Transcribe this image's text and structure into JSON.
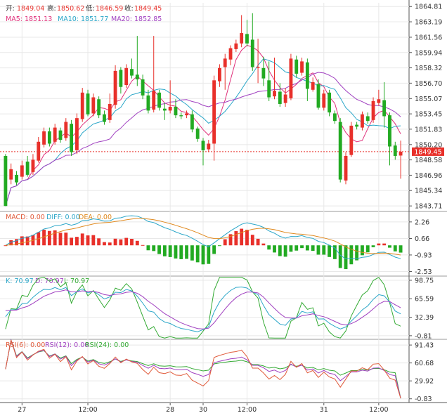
{
  "header": {
    "open_label": "开:",
    "open_value": "1849.04",
    "high_label": "高:",
    "high_value": "1850.62",
    "low_label": "低:",
    "low_value": "1846.59",
    "close_label": "收:",
    "close_value": "1849.45"
  },
  "ma_legend": [
    {
      "text": "MA5: 1851.13",
      "color": "#e0307a"
    },
    {
      "text": "MA10: 1851.77",
      "color": "#2aa6c8"
    },
    {
      "text": "MA20: 1852.85",
      "color": "#a040c0"
    }
  ],
  "macd_legend": [
    {
      "text": "MACD: 0.00",
      "color": "#e05a3a"
    },
    {
      "text": "DIFF: 0.00",
      "color": "#2aa6c8"
    },
    {
      "text": "DEA: 0.00",
      "color": "#e08a20"
    }
  ],
  "kdj_legend": [
    {
      "text": "K: 70.97",
      "color": "#2aa6c8"
    },
    {
      "text": "D: 70.97",
      "color": "#a040c0"
    },
    {
      "text": "J: 70.97",
      "color": "#33aa33"
    }
  ],
  "rsi_legend": [
    {
      "text": "RSI(6): 0.00",
      "color": "#e05a3a"
    },
    {
      "text": "RSI(12): 0.00",
      "color": "#a040c0"
    },
    {
      "text": "RSI(24): 0.00",
      "color": "#33aa33"
    }
  ],
  "colors": {
    "up": "#e8302a",
    "down": "#22aa22",
    "grid": "#e8e8e8",
    "axis": "#333333"
  },
  "chart_data": [
    {
      "type": "candlestick",
      "ylim": [
        1843.2,
        1865.2
      ],
      "y_ticks": [
        "1864.81",
        "1863.19",
        "1861.56",
        "1859.94",
        "1858.32",
        "1856.70",
        "1855.07",
        "1853.45",
        "1851.83",
        "1850.20",
        "1848.58",
        "1846.96",
        "1845.34",
        "1843.71"
      ],
      "last_price": "1849.45",
      "x_ticks": [
        "27",
        "12:00",
        "28",
        "30",
        "12:00",
        "31",
        "12:00"
      ],
      "candles": [
        [
          1849.0,
          1843.7,
          1849.2,
          1843.7
        ],
        [
          1846.5,
          1847.6,
          1848.2,
          1846.0
        ],
        [
          1847.0,
          1846.2,
          1847.4,
          1845.9
        ],
        [
          1846.8,
          1848.0,
          1848.5,
          1846.5
        ],
        [
          1848.4,
          1847.0,
          1849.0,
          1846.8
        ],
        [
          1847.3,
          1848.6,
          1849.2,
          1847.0
        ],
        [
          1848.5,
          1850.5,
          1851.0,
          1848.3
        ],
        [
          1850.2,
          1851.6,
          1852.0,
          1849.9
        ],
        [
          1851.6,
          1850.3,
          1852.0,
          1850.0
        ],
        [
          1850.5,
          1852.0,
          1852.4,
          1850.2
        ],
        [
          1851.7,
          1850.7,
          1852.0,
          1850.4
        ],
        [
          1850.9,
          1852.6,
          1853.0,
          1850.6
        ],
        [
          1852.4,
          1849.4,
          1852.8,
          1849.0
        ],
        [
          1849.6,
          1853.0,
          1853.5,
          1849.2
        ],
        [
          1852.9,
          1855.7,
          1856.2,
          1852.6
        ],
        [
          1855.6,
          1853.4,
          1856.0,
          1853.2
        ],
        [
          1853.5,
          1855.2,
          1855.6,
          1853.2
        ],
        [
          1855.0,
          1853.3,
          1855.3,
          1853.0
        ],
        [
          1853.4,
          1852.6,
          1853.8,
          1852.3
        ],
        [
          1852.8,
          1854.5,
          1855.6,
          1852.5
        ],
        [
          1854.4,
          1858.0,
          1858.6,
          1854.0
        ],
        [
          1858.1,
          1856.3,
          1858.4,
          1855.6
        ],
        [
          1856.5,
          1858.3,
          1858.7,
          1856.2
        ],
        [
          1858.2,
          1857.5,
          1859.3,
          1857.2
        ],
        [
          1857.6,
          1857.1,
          1861.7,
          1856.4
        ],
        [
          1857.1,
          1855.4,
          1857.6,
          1855.0
        ],
        [
          1855.4,
          1853.8,
          1856.0,
          1853.5
        ],
        [
          1853.9,
          1855.9,
          1861.7,
          1853.6
        ],
        [
          1855.7,
          1854.1,
          1856.0,
          1853.8
        ],
        [
          1854.0,
          1853.8,
          1854.6,
          1852.8
        ],
        [
          1853.8,
          1854.2,
          1857.0,
          1853.5
        ],
        [
          1854.2,
          1853.3,
          1855.0,
          1853.0
        ],
        [
          1853.3,
          1853.2,
          1853.6,
          1852.9
        ],
        [
          1853.3,
          1853.5,
          1853.8,
          1853.0
        ],
        [
          1853.4,
          1851.8,
          1853.8,
          1851.5
        ],
        [
          1851.9,
          1850.8,
          1852.1,
          1850.5
        ],
        [
          1850.6,
          1849.6,
          1850.9,
          1848.0
        ],
        [
          1849.7,
          1850.3,
          1850.7,
          1849.4
        ],
        [
          1850.3,
          1857.0,
          1857.5,
          1848.5
        ],
        [
          1856.9,
          1858.3,
          1858.7,
          1856.3
        ],
        [
          1858.4,
          1859.3,
          1859.8,
          1856.0
        ],
        [
          1859.2,
          1860.4,
          1860.7,
          1858.6
        ],
        [
          1860.3,
          1860.9,
          1861.3,
          1860.0
        ],
        [
          1860.9,
          1862.0,
          1863.9,
          1860.5
        ],
        [
          1861.9,
          1860.9,
          1863.4,
          1860.6
        ],
        [
          1861.3,
          1858.4,
          1864.1,
          1858.0
        ],
        [
          1858.3,
          1858.4,
          1861.4,
          1856.7
        ],
        [
          1858.3,
          1857.2,
          1859.5,
          1856.4
        ],
        [
          1857.0,
          1855.2,
          1859.0,
          1854.8
        ],
        [
          1855.3,
          1855.9,
          1859.4,
          1855.0
        ],
        [
          1855.8,
          1854.5,
          1856.7,
          1854.2
        ],
        [
          1854.6,
          1855.5,
          1856.2,
          1854.2
        ],
        [
          1855.1,
          1859.3,
          1859.8,
          1854.9
        ],
        [
          1859.2,
          1857.7,
          1859.6,
          1857.3
        ],
        [
          1857.8,
          1859.0,
          1859.4,
          1857.5
        ],
        [
          1858.9,
          1856.1,
          1859.3,
          1854.8
        ],
        [
          1856.0,
          1856.8,
          1857.3,
          1855.8
        ],
        [
          1856.6,
          1854.1,
          1857.1,
          1853.9
        ],
        [
          1854.1,
          1855.6,
          1856.0,
          1853.8
        ],
        [
          1855.7,
          1853.6,
          1856.0,
          1853.2
        ],
        [
          1853.5,
          1852.7,
          1853.8,
          1852.4
        ],
        [
          1852.6,
          1846.5,
          1853.0,
          1846.2
        ],
        [
          1846.4,
          1849.0,
          1849.4,
          1846.0
        ],
        [
          1849.1,
          1852.2,
          1852.6,
          1848.9
        ],
        [
          1852.3,
          1852.1,
          1852.6,
          1851.8
        ],
        [
          1852.0,
          1853.4,
          1853.7,
          1851.7
        ],
        [
          1853.2,
          1852.7,
          1853.6,
          1852.4
        ],
        [
          1852.8,
          1854.8,
          1855.2,
          1852.5
        ],
        [
          1854.6,
          1855.0,
          1856.0,
          1854.3
        ],
        [
          1854.9,
          1853.2,
          1856.8,
          1852.0
        ],
        [
          1853.3,
          1850.0,
          1853.6,
          1848.0
        ],
        [
          1850.1,
          1849.0,
          1850.5,
          1848.6
        ],
        [
          1849.04,
          1849.45,
          1850.62,
          1846.59
        ]
      ]
    },
    {
      "type": "line+bar",
      "name": "MACD",
      "ylim": [
        -2.9,
        3.2
      ],
      "y_ticks": [
        "2.26",
        "0.66",
        "-0.93",
        "-2.53"
      ]
    },
    {
      "type": "line",
      "name": "KDJ",
      "ylim": [
        -6,
        105
      ],
      "y_ticks": [
        "98.75",
        "65.59",
        "32.39",
        "-0.81"
      ]
    },
    {
      "type": "line",
      "name": "RSI",
      "ylim": [
        -6,
        100
      ],
      "y_ticks": [
        "91.43",
        "60.68",
        "29.92",
        "-0.83"
      ]
    }
  ]
}
